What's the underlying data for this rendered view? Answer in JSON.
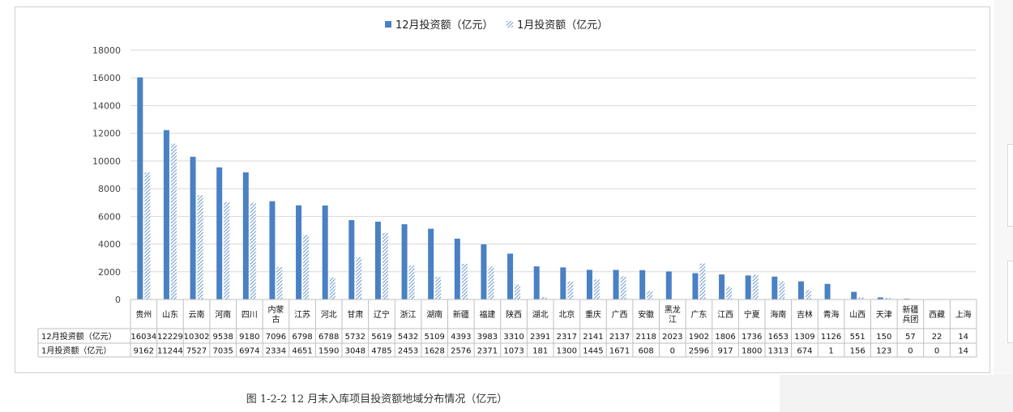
{
  "chart_data": {
    "type": "bar",
    "legend": [
      {
        "name": "12月投资额（亿元）",
        "color": "#4a80c4",
        "pattern": "solid"
      },
      {
        "name": "1月投资额（亿元）",
        "color": "#4a80c4",
        "pattern": "diagonal-hatch"
      }
    ],
    "legend_position": "top-center",
    "categories": [
      "贵州",
      "山东",
      "云南",
      "河南",
      "四川",
      "内蒙\n古",
      "江苏",
      "河北",
      "甘肃",
      "辽宁",
      "浙江",
      "湖南",
      "新疆",
      "福建",
      "陕西",
      "湖北",
      "北京",
      "重庆",
      "广西",
      "安徽",
      "黑龙\n江",
      "广东",
      "江西",
      "宁夏",
      "海南",
      "吉林",
      "青海",
      "山西",
      "天津",
      "新疆\n兵团",
      "西藏",
      "上海"
    ],
    "series": [
      {
        "name": "12月投资额（亿元）",
        "values": [
          16034,
          12229,
          10302,
          9538,
          9180,
          7096,
          6798,
          6788,
          5732,
          5619,
          5432,
          5109,
          4393,
          3983,
          3310,
          2391,
          2317,
          2141,
          2137,
          2118,
          2023,
          1902,
          1806,
          1736,
          1653,
          1309,
          1126,
          551,
          150,
          57,
          22,
          14
        ]
      },
      {
        "name": "1月投资额（亿元）",
        "values": [
          9162,
          11244,
          7527,
          7035,
          6974,
          2334,
          4651,
          1590,
          3048,
          4785,
          2453,
          1628,
          2576,
          2371,
          1073,
          181,
          1300,
          1445,
          1671,
          608,
          0,
          2596,
          917,
          1800,
          1313,
          674,
          1,
          156,
          123,
          0,
          0,
          14
        ]
      }
    ],
    "ylim": [
      0,
      18000
    ],
    "yticks": [
      0,
      2000,
      4000,
      6000,
      8000,
      10000,
      12000,
      14000,
      16000,
      18000
    ],
    "grid": true,
    "data_table": true
  },
  "caption": "图 1-2-2  12 月末入库项目投资额地域分布情况（亿元）"
}
